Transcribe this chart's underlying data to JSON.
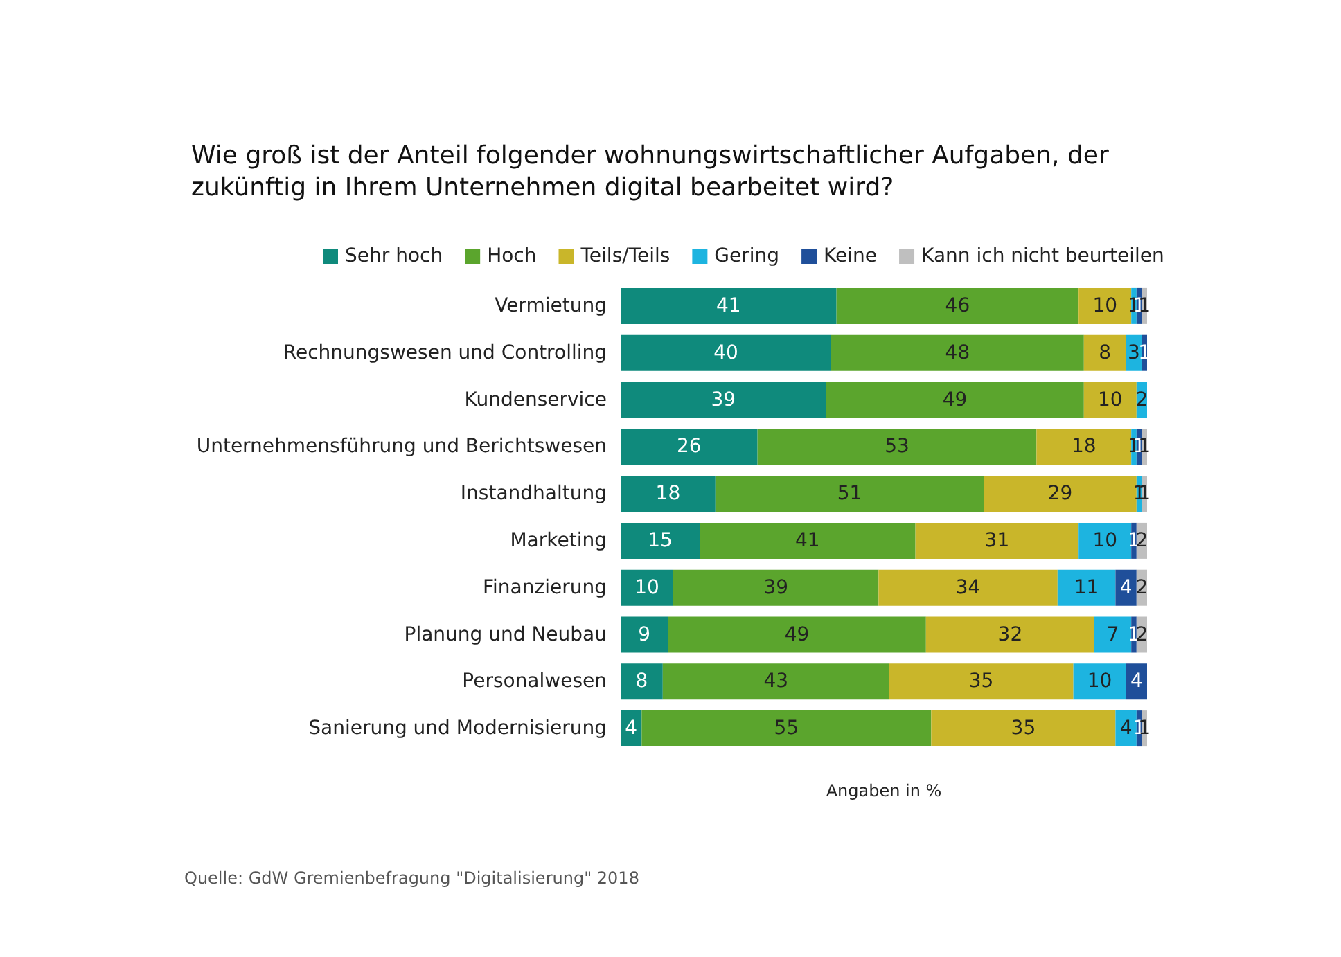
{
  "chart_data": {
    "type": "bar",
    "orientation": "horizontal",
    "stacked": true,
    "title": "Wie groß ist der Anteil folgender wohnungswirtschaftlicher Aufgaben, der zukünftig in Ihrem Unternehmen digital bearbeitet wird?",
    "xlabel": "Angaben in %",
    "annotations": [
      "Quelle: GdW Gremienbefragung \"Digitalisierung\" 2018"
    ],
    "categories": [
      "Vermietung",
      "Rechnungswesen und Controlling",
      "Kundenservice",
      "Unternehmensführung und Berichtswesen",
      "Instandhaltung",
      "Marketing",
      "Finanzierung",
      "Planung und Neubau",
      "Personalwesen",
      "Sanierung und Modernisierung"
    ],
    "series": [
      {
        "name": "Sehr hoch",
        "color": "#0f8a7c",
        "values": [
          41,
          40,
          39,
          26,
          18,
          15,
          10,
          9,
          8,
          4
        ]
      },
      {
        "name": "Hoch",
        "color": "#5ba52d",
        "values": [
          46,
          48,
          49,
          53,
          51,
          41,
          39,
          49,
          43,
          55
        ]
      },
      {
        "name": "Teils/Teils",
        "color": "#c9b62a",
        "values": [
          10,
          8,
          10,
          18,
          29,
          31,
          34,
          32,
          35,
          35
        ]
      },
      {
        "name": "Gering",
        "color": "#1db4e0",
        "values": [
          1,
          3,
          2,
          1,
          1,
          10,
          11,
          7,
          10,
          4
        ]
      },
      {
        "name": "Keine",
        "color": "#1f4f9a",
        "values": [
          1,
          1,
          null,
          1,
          null,
          1,
          4,
          1,
          4,
          1
        ]
      },
      {
        "name": "Kann ich nicht beurteilen",
        "color": "#bfbfbf",
        "values": [
          1,
          null,
          null,
          1,
          1,
          2,
          2,
          2,
          null,
          1
        ]
      }
    ],
    "xlim": [
      0,
      100
    ],
    "tick_labels": "y",
    "data_labels": true,
    "legend": "top",
    "grid": false
  }
}
